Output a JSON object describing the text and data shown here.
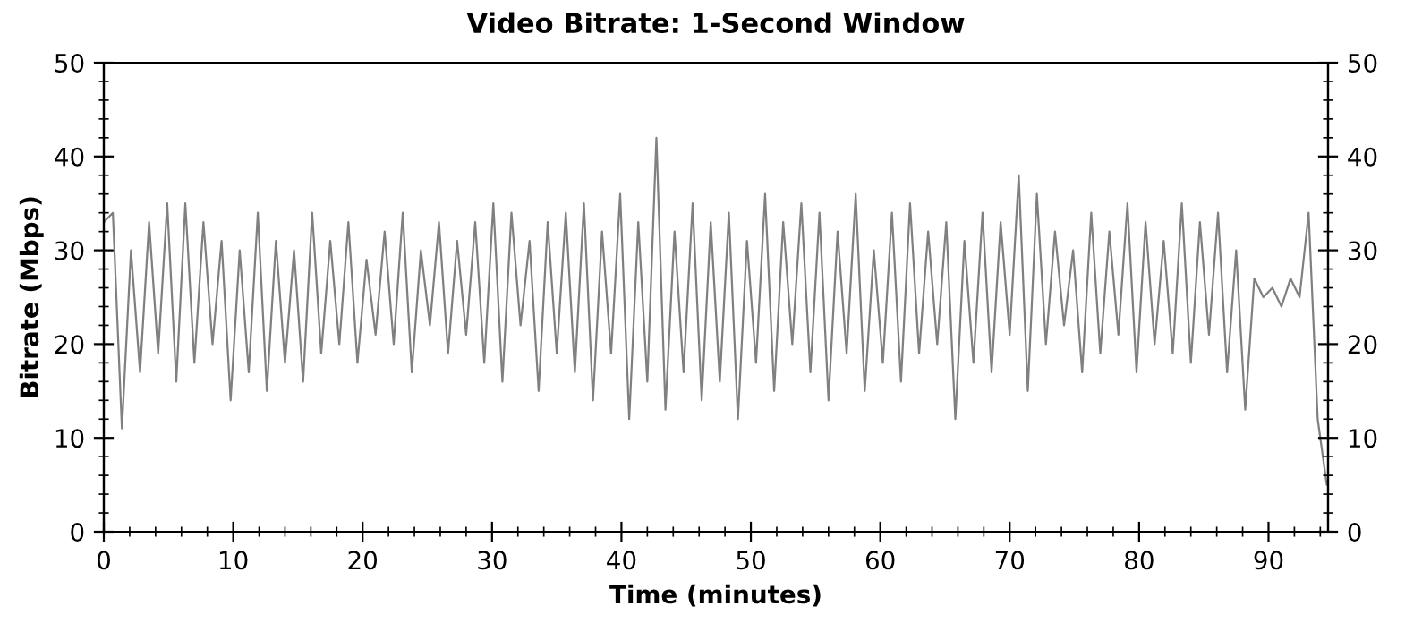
{
  "chart_data": {
    "type": "line",
    "title": "Video Bitrate: 1-Second Window",
    "xlabel": "Time (minutes)",
    "ylabel": "Bitrate (Mbps)",
    "xlim": [
      0,
      94.6
    ],
    "xticks": [
      0,
      10,
      20,
      30,
      40,
      50,
      60,
      70,
      80,
      90
    ],
    "ylim": [
      0,
      50
    ],
    "yticks": [
      0,
      10,
      20,
      30,
      40,
      50
    ],
    "y2lim": [
      0,
      50
    ],
    "y2ticks": [
      0,
      10,
      20,
      30,
      40,
      50
    ],
    "grid": false,
    "legend": false,
    "marker": "none",
    "line_style": "solid",
    "series": [
      {
        "color": "#808080",
        "x": [
          0,
          0.7,
          1.4,
          2.1,
          2.8,
          3.5,
          4.2,
          4.9,
          5.6,
          6.3,
          7,
          7.7,
          8.4,
          9.1,
          9.8,
          10.5,
          11.2,
          11.9,
          12.6,
          13.3,
          14,
          14.7,
          15.4,
          16.1,
          16.8,
          17.5,
          18.2,
          18.9,
          19.6,
          20.3,
          21,
          21.7,
          22.4,
          23.1,
          23.8,
          24.5,
          25.2,
          25.9,
          26.6,
          27.3,
          28,
          28.7,
          29.4,
          30.1,
          30.8,
          31.5,
          32.2,
          32.9,
          33.6,
          34.3,
          35,
          35.7,
          36.4,
          37.1,
          37.8,
          38.5,
          39.2,
          39.9,
          40.6,
          41.3,
          42,
          42.7,
          43.4,
          44.1,
          44.8,
          45.5,
          46.2,
          46.9,
          47.6,
          48.3,
          49,
          49.7,
          50.4,
          51.1,
          51.8,
          52.5,
          53.2,
          53.9,
          54.6,
          55.3,
          56,
          56.7,
          57.4,
          58.1,
          58.8,
          59.5,
          60.2,
          60.9,
          61.6,
          62.3,
          63,
          63.7,
          64.4,
          65.1,
          65.8,
          66.5,
          67.2,
          67.9,
          68.6,
          69.3,
          70,
          70.7,
          71.4,
          72.1,
          72.8,
          73.5,
          74.2,
          74.9,
          75.6,
          76.3,
          77,
          77.7,
          78.4,
          79.1,
          79.8,
          80.5,
          81.2,
          81.9,
          82.6,
          83.3,
          84,
          84.7,
          85.4,
          86.1,
          86.8,
          87.5,
          88.2,
          88.9,
          89.6,
          90.3,
          91,
          91.7,
          92.4,
          93.1,
          93.8,
          94.5
        ],
        "values": [
          33,
          34,
          11,
          30,
          17,
          33,
          19,
          35,
          16,
          35,
          18,
          33,
          20,
          31,
          14,
          30,
          17,
          34,
          15,
          31,
          18,
          30,
          16,
          34,
          19,
          31,
          20,
          33,
          18,
          29,
          21,
          32,
          20,
          34,
          17,
          30,
          22,
          33,
          19,
          31,
          21,
          33,
          18,
          35,
          16,
          34,
          22,
          31,
          15,
          33,
          19,
          34,
          17,
          35,
          14,
          32,
          19,
          36,
          12,
          33,
          16,
          42,
          13,
          32,
          17,
          35,
          14,
          33,
          16,
          34,
          12,
          31,
          18,
          36,
          15,
          33,
          20,
          35,
          17,
          34,
          14,
          32,
          19,
          36,
          15,
          30,
          18,
          34,
          16,
          35,
          19,
          32,
          20,
          33,
          12,
          31,
          18,
          34,
          17,
          33,
          21,
          38,
          15,
          36,
          20,
          32,
          22,
          30,
          17,
          34,
          19,
          32,
          21,
          35,
          17,
          33,
          20,
          31,
          19,
          35,
          18,
          33,
          21,
          34,
          17,
          30,
          13,
          27,
          25,
          26,
          24,
          27,
          25,
          34,
          12,
          5
        ]
      }
    ]
  }
}
